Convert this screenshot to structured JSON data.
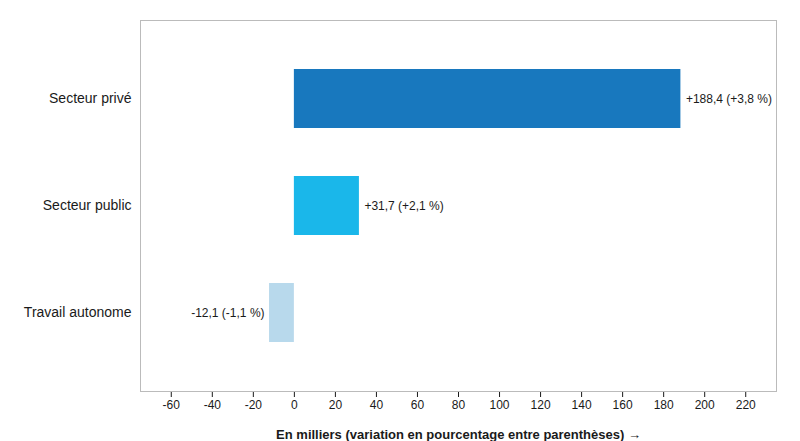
{
  "chart_data": {
    "type": "bar",
    "orientation": "horizontal",
    "categories": [
      "Travail autonome",
      "Secteur public",
      "Secteur privé"
    ],
    "values": [
      -12.1,
      31.7,
      188.4
    ],
    "value_labels": [
      "-12,1 (-1,1 %)",
      "+31,7 (+2,1 %)",
      "+188,4 (+3,8 %)"
    ],
    "data_labels": true,
    "colors": [
      "#b8d9ec",
      "#1ab7ea",
      "#1878be"
    ],
    "xlabel": "En milliers (variation en pourcentage entre parenthèses)",
    "xlim": [
      -75,
      235
    ],
    "xticks": [
      -60,
      -40,
      -20,
      0,
      20,
      40,
      60,
      80,
      100,
      120,
      140,
      160,
      180,
      200,
      220
    ],
    "grid": false
  }
}
